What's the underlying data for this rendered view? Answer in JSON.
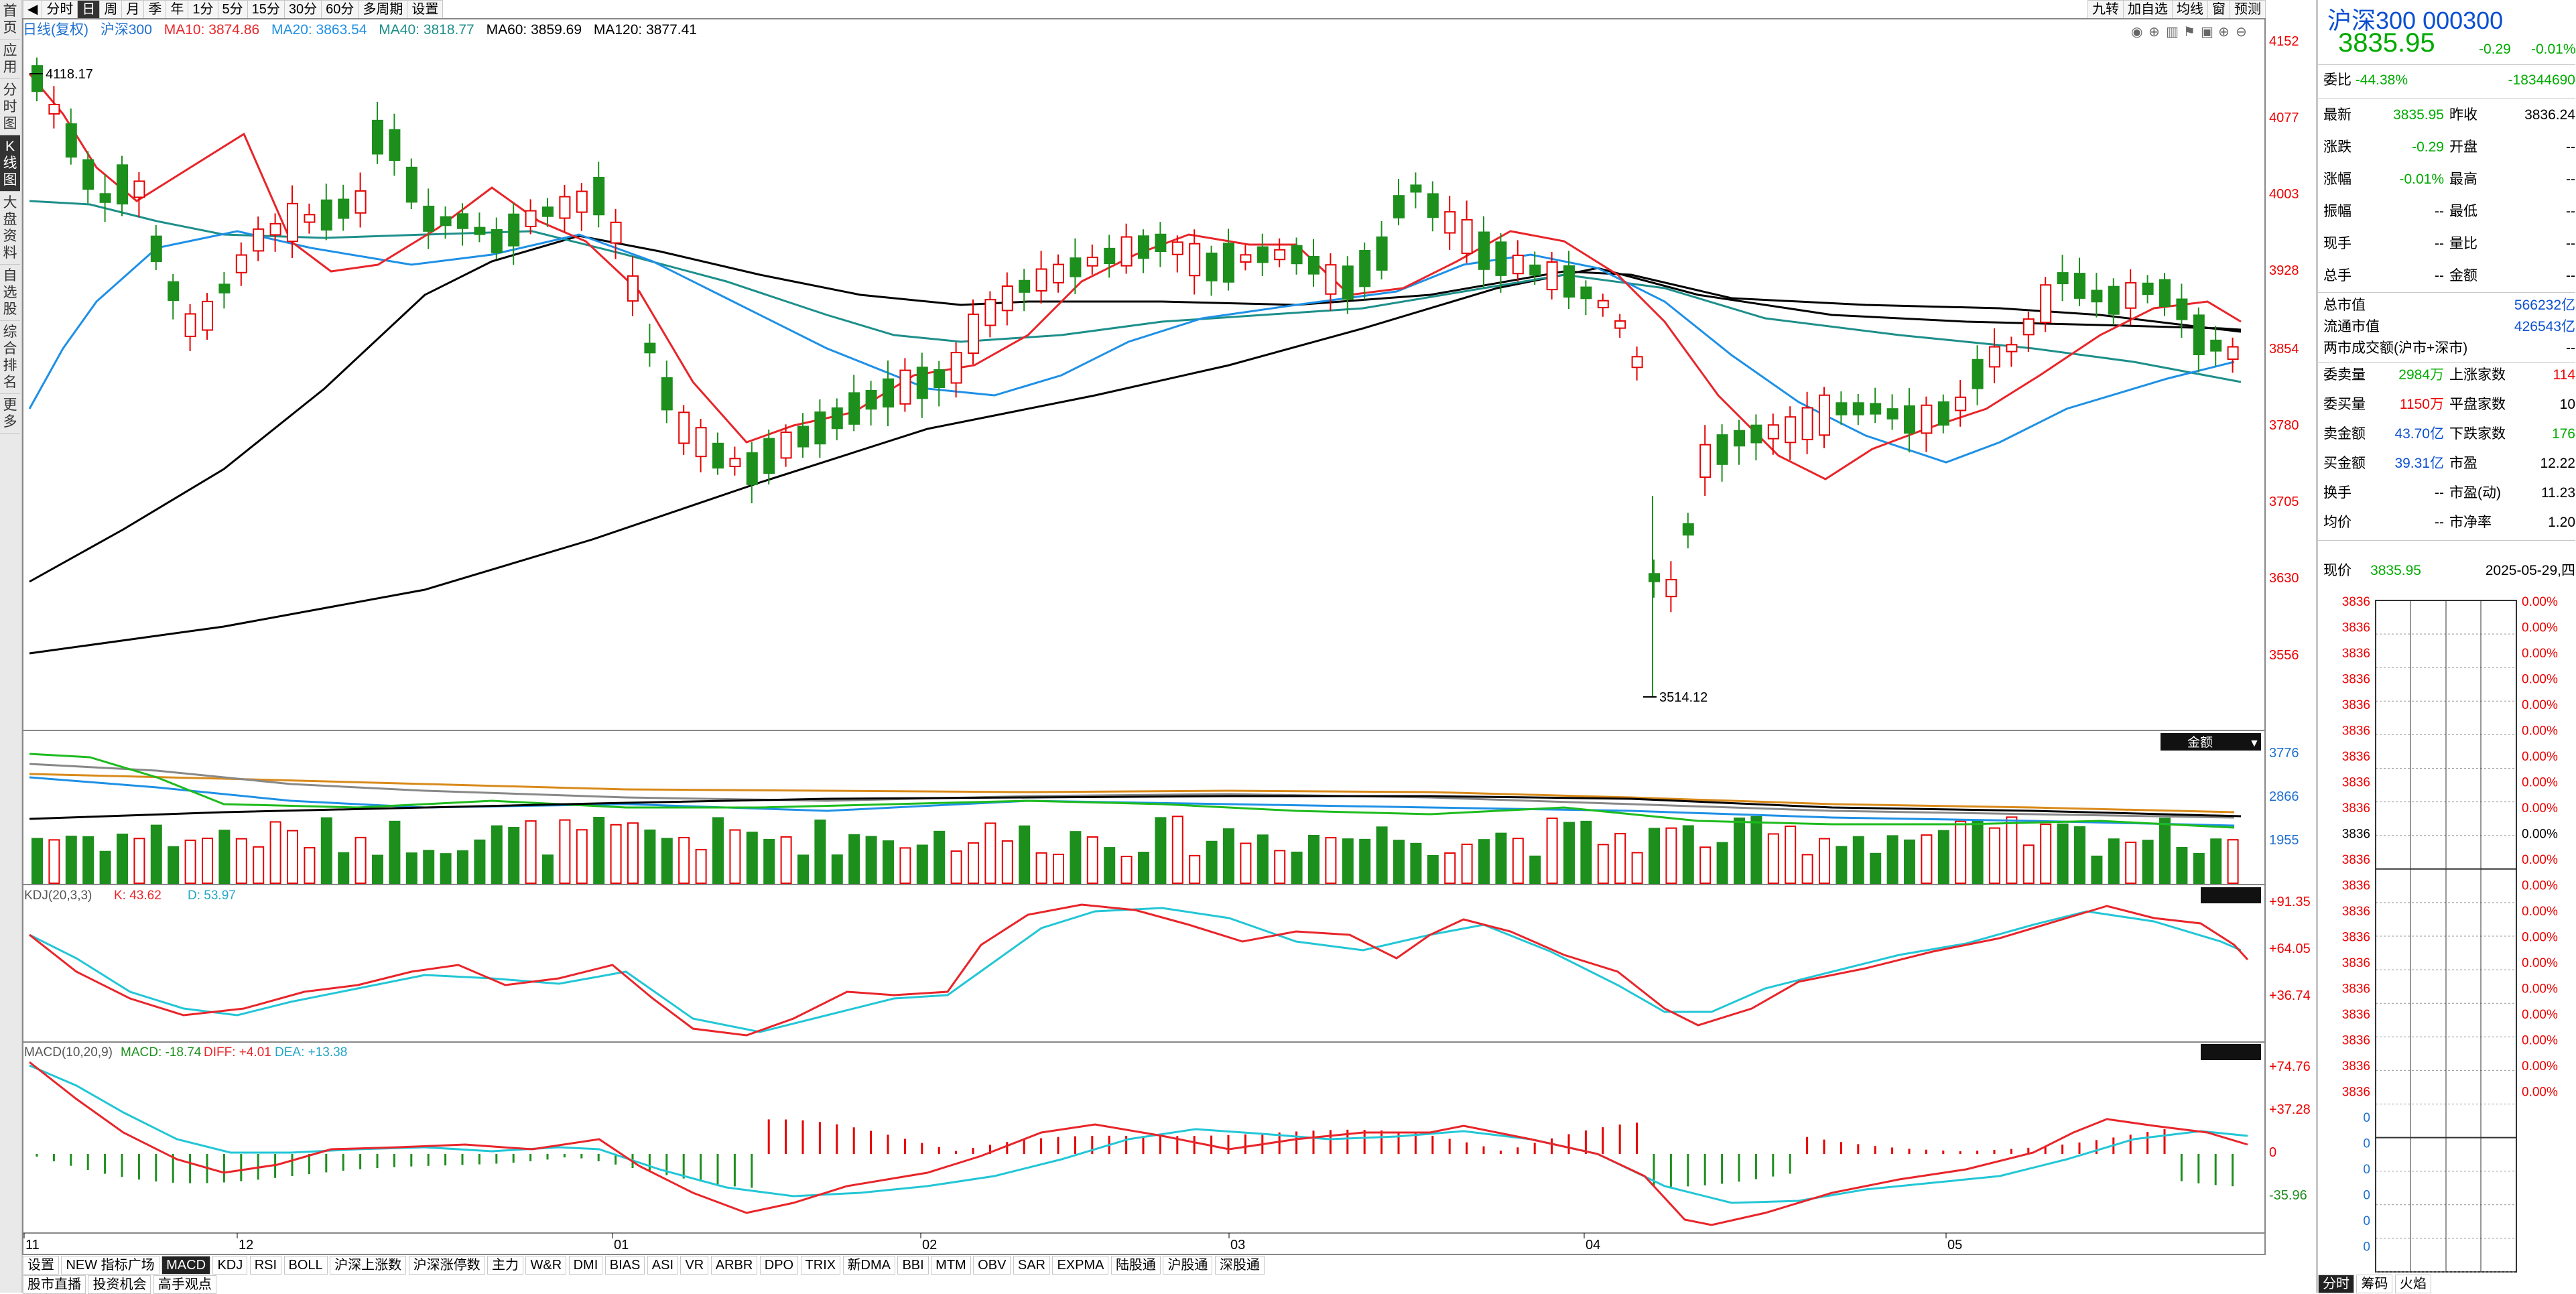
{
  "left_tabs": [
    "首页",
    "应用",
    "分时图",
    "K线图",
    "大盘资料",
    "自选股",
    "综合排名",
    "更多"
  ],
  "toolbar": {
    "periods": [
      "分时",
      "日",
      "周",
      "月",
      "季",
      "年",
      "1分",
      "5分",
      "15分",
      "30分",
      "60分",
      "多周期",
      "设置"
    ],
    "active": "日",
    "right_buttons": [
      "九转",
      "加自选",
      "均线",
      "窗",
      "预测"
    ]
  },
  "legend": {
    "title": "日线(复权)",
    "name": "沪深300",
    "ma10": "MA10: 3874.86",
    "ma20": "MA20: 3863.54",
    "ma40": "MA40: 3818.77",
    "ma60": "MA60: 3859.69",
    "ma120": "MA120: 3877.41"
  },
  "price_axis": [
    "4152",
    "4077",
    "4003",
    "3928",
    "3854",
    "3780",
    "3705",
    "3630",
    "3556"
  ],
  "high_label": "4118.17",
  "low_label": "3514.12",
  "volume_badge": "金额",
  "volume_axis": [
    "3776",
    "2866",
    "1955"
  ],
  "kdj": {
    "label": "KDJ(20,3,3)",
    "k": "K: 43.62",
    "d": "D: 53.97",
    "axis": [
      "+91.35",
      "+64.05",
      "+36.74"
    ]
  },
  "macd": {
    "label": "MACD(10,20,9)",
    "macd": "MACD: -18.74",
    "diff": "DIFF: +4.01",
    "dea": "DEA: +13.38",
    "axis": [
      "+74.76",
      "+37.28",
      "0",
      "-35.96"
    ]
  },
  "months": [
    "11",
    "12",
    "01",
    "02",
    "03",
    "04",
    "05"
  ],
  "indicator_tabs": [
    "设置",
    "NEW 指标广场",
    "MACD",
    "KDJ",
    "RSI",
    "BOLL",
    "沪深上涨数",
    "沪深涨停数",
    "主力",
    "W&R",
    "DMI",
    "BIAS",
    "ASI",
    "VR",
    "ARBR",
    "DPO",
    "TRIX",
    "新DMA",
    "BBI",
    "MTM",
    "OBV",
    "SAR",
    "EXPMA",
    "陆股通",
    "沪股通",
    "深股通"
  ],
  "indicator_active": "MACD",
  "bottom_tabs": [
    "股市直播",
    "投资机会",
    "高手观点"
  ],
  "quote": {
    "title": "沪深300 000300",
    "price": "3835.95",
    "change": "-0.29",
    "change_pct": "-0.01%",
    "weibi_label": "委比",
    "weibi": "-44.38%",
    "weicha": "-18344690",
    "latest_label": "最新",
    "latest": "3835.95",
    "prev_label": "昨收",
    "prev": "3836.24",
    "zhangdie_label": "涨跌",
    "zhangdie": "-0.29",
    "open_label": "开盘",
    "open": "--",
    "zhangfu_label": "涨幅",
    "zhangfu": "-0.01%",
    "high_label": "最高",
    "high": "--",
    "zhenfu_label": "振幅",
    "zhenfu": "--",
    "low_label": "最低",
    "low": "--",
    "xianshou_label": "现手",
    "xianshou": "--",
    "liangbi_label": "量比",
    "liangbi": "--",
    "zongshou_label": "总手",
    "zongshou": "--",
    "jine_label": "金额",
    "jine": "--",
    "total_mv_label": "总市值",
    "total_mv": "566232亿",
    "float_mv_label": "流通市值",
    "float_mv": "426543亿",
    "two_market_label": "两市成交额(沪市+深市)",
    "two_market": "--",
    "sell_vol_label": "委卖量",
    "sell_vol": "2984万",
    "up_count_label": "上涨家数",
    "up_count": "114",
    "buy_vol_label": "委买量",
    "buy_vol": "1150万",
    "flat_count_label": "平盘家数",
    "flat_count": "10",
    "sell_amt_label": "卖金额",
    "sell_amt": "43.70亿",
    "down_count_label": "下跌家数",
    "down_count": "176",
    "buy_amt_label": "买金额",
    "buy_amt": "39.31亿",
    "pe_label": "市盈",
    "pe": "12.22",
    "turnover_label": "换手",
    "turnover": "--",
    "pe_dyn_label": "市盈(动)",
    "pe_dyn": "11.23",
    "avg_label": "均价",
    "avg": "--",
    "pb_label": "市净率",
    "pb": "1.20",
    "now_label": "现价",
    "now": "3835.95",
    "date": "2025-05-29,四"
  },
  "mini": {
    "left_price": "3836",
    "pct": "0.00%",
    "zero": "0",
    "tabs": [
      "分时",
      "筹码",
      "火焰"
    ]
  },
  "colors": {
    "up": "#e60000",
    "down": "#1d8f1d",
    "ma10": "#e8252a",
    "ma20": "#1e90e6",
    "ma40": "#1d8f8a",
    "ma60": "#000000",
    "kdj_k": "#e8252a",
    "kdj_d": "#22c6d6"
  }
}
